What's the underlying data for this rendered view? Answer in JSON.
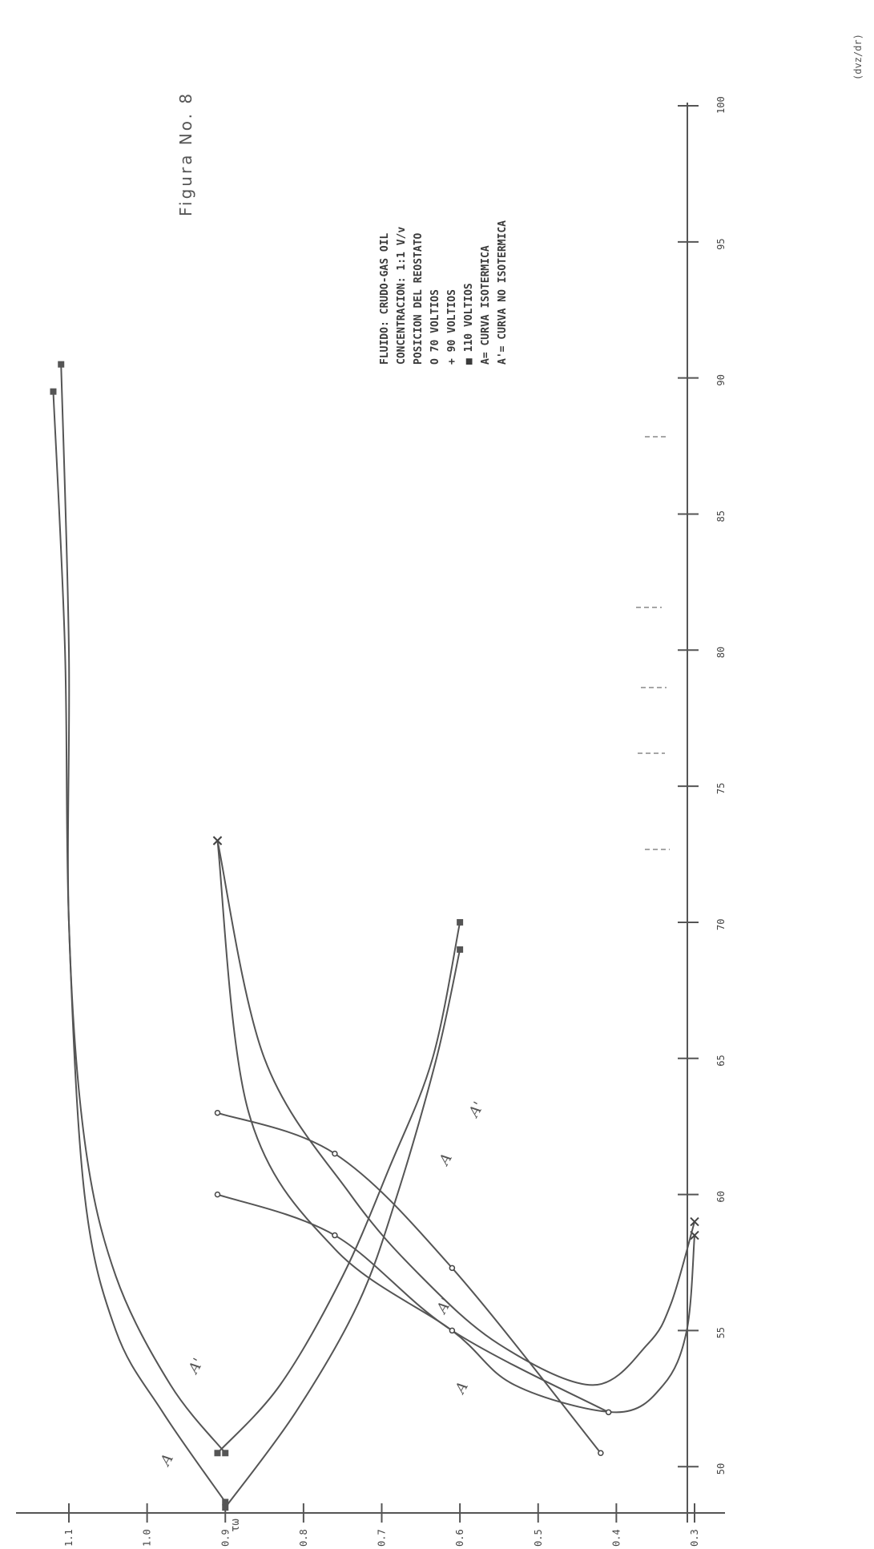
{
  "chart_data": {
    "type": "line",
    "title": "Figura No. 8",
    "xlabel": "(dvz/dr)",
    "ylabel": "τω",
    "x_ticks": [
      "50",
      "55",
      "60",
      "65",
      "70",
      "75",
      "80",
      "85",
      "90",
      "95",
      "100"
    ],
    "y_ticks": [
      "0.3",
      "0.4",
      "0.5",
      "0.6",
      "0.7",
      "0.8",
      "0.9",
      "1.0",
      "1.1"
    ],
    "xlim": [
      48,
      100
    ],
    "ylim": [
      0.3,
      1.12
    ],
    "legend": {
      "lines": [
        "FLUIDO: CRUDO-GAS OIL",
        "CONCENTRACION: 1:1 V/v",
        "POSICION DEL REOSTATO",
        "O  70 VOLTIOS",
        "+  90 VOLTIOS",
        "■  110 VOLTIOS",
        "A= CURVA ISOTERMICA",
        "A'= CURVA NO ISOTERMICA"
      ]
    },
    "annotations": [
      "A",
      "A'",
      "A",
      "A'",
      "A",
      "A'"
    ],
    "series": [
      {
        "marker": "square",
        "color": "#555555",
        "points": [
          [
            48.7,
            0.9
          ],
          [
            52,
            0.98
          ],
          [
            55,
            1.04
          ],
          [
            60,
            1.08
          ],
          [
            70,
            1.1
          ],
          [
            80,
            1.105
          ],
          [
            89.5,
            1.12
          ]
        ]
      },
      {
        "marker": "square",
        "color": "#555555",
        "points": [
          [
            50.5,
            0.9
          ],
          [
            53,
            0.97
          ],
          [
            57,
            1.04
          ],
          [
            62,
            1.08
          ],
          [
            70,
            1.1
          ],
          [
            80,
            1.1
          ],
          [
            90.5,
            1.11
          ]
        ]
      },
      {
        "marker": "square",
        "color": "#555555",
        "points": [
          [
            48.5,
            0.9
          ],
          [
            52,
            0.81
          ],
          [
            56,
            0.73
          ],
          [
            60,
            0.68
          ],
          [
            65,
            0.63
          ],
          [
            69,
            0.6
          ]
        ]
      },
      {
        "marker": "square",
        "color": "#555555",
        "points": [
          [
            50.5,
            0.91
          ],
          [
            53,
            0.83
          ],
          [
            57,
            0.75
          ],
          [
            61,
            0.69
          ],
          [
            65,
            0.635
          ],
          [
            70,
            0.6
          ]
        ]
      },
      {
        "marker": "cross",
        "color": "#555555",
        "points": [
          [
            73,
            0.91
          ],
          [
            63,
            0.87
          ],
          [
            58,
            0.76
          ],
          [
            55,
            0.61
          ],
          [
            53,
            0.53
          ],
          [
            52,
            0.4
          ],
          [
            53,
            0.34
          ],
          [
            55,
            0.31
          ],
          [
            58.5,
            0.3
          ]
        ]
      },
      {
        "marker": "cross",
        "color": "#555555",
        "points": [
          [
            73,
            0.91
          ],
          [
            65,
            0.85
          ],
          [
            60,
            0.74
          ],
          [
            57,
            0.65
          ],
          [
            54.5,
            0.55
          ],
          [
            53,
            0.43
          ],
          [
            54.5,
            0.36
          ],
          [
            56,
            0.33
          ],
          [
            59,
            0.3
          ]
        ]
      },
      {
        "marker": "circle",
        "color": "#555555",
        "points": [
          [
            60,
            0.91
          ],
          [
            58.5,
            0.76
          ],
          [
            55,
            0.61
          ],
          [
            52,
            0.41
          ]
        ]
      },
      {
        "marker": "circle",
        "color": "#555555",
        "points": [
          [
            63,
            0.91
          ],
          [
            61.5,
            0.76
          ],
          [
            57.3,
            0.61
          ],
          [
            50.5,
            0.42
          ]
        ]
      }
    ]
  }
}
